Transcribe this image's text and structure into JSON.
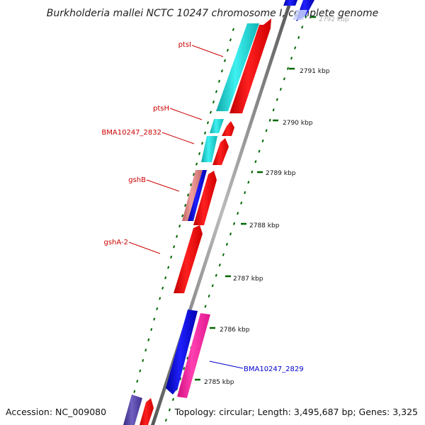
{
  "header": {
    "title": "Burkholderia mallei NCTC 10247 chromosome I, complete genome"
  },
  "footer": {
    "accession": "Accession: NC_009080",
    "summary": "Topology: circular; Length: 3,495,687 bp; Genes: 3,325"
  },
  "ruler": {
    "ticks": [
      {
        "label": "2792 kbp"
      },
      {
        "label": "2791 kbp"
      },
      {
        "label": "2790 kbp"
      },
      {
        "label": "2789 kbp"
      },
      {
        "label": "2788 kbp"
      },
      {
        "label": "2787 kbp"
      },
      {
        "label": "2786 kbp"
      },
      {
        "label": "2785 kbp"
      }
    ]
  },
  "gene_labels": [
    {
      "name": "ptsI",
      "color": "#cc0000"
    },
    {
      "name": "ptsH",
      "color": "#cc0000"
    },
    {
      "name": "BMA10247_2832",
      "color": "#cc0000"
    },
    {
      "name": "gshB",
      "color": "#cc0000"
    },
    {
      "name": "gshA-2",
      "color": "#cc0000"
    },
    {
      "name": "BMA10247_2829",
      "color": "#0000cc"
    }
  ],
  "colors": {
    "cds": "#ff0000",
    "gene_cyan": "#20d0d0",
    "gene_blue": "#0000ee",
    "gene_pink": "#ff2aa0",
    "gene_salmon": "#e08080",
    "gene_purple": "#5a4aa0",
    "backbone": "#777777",
    "tick_green": "#006600"
  }
}
